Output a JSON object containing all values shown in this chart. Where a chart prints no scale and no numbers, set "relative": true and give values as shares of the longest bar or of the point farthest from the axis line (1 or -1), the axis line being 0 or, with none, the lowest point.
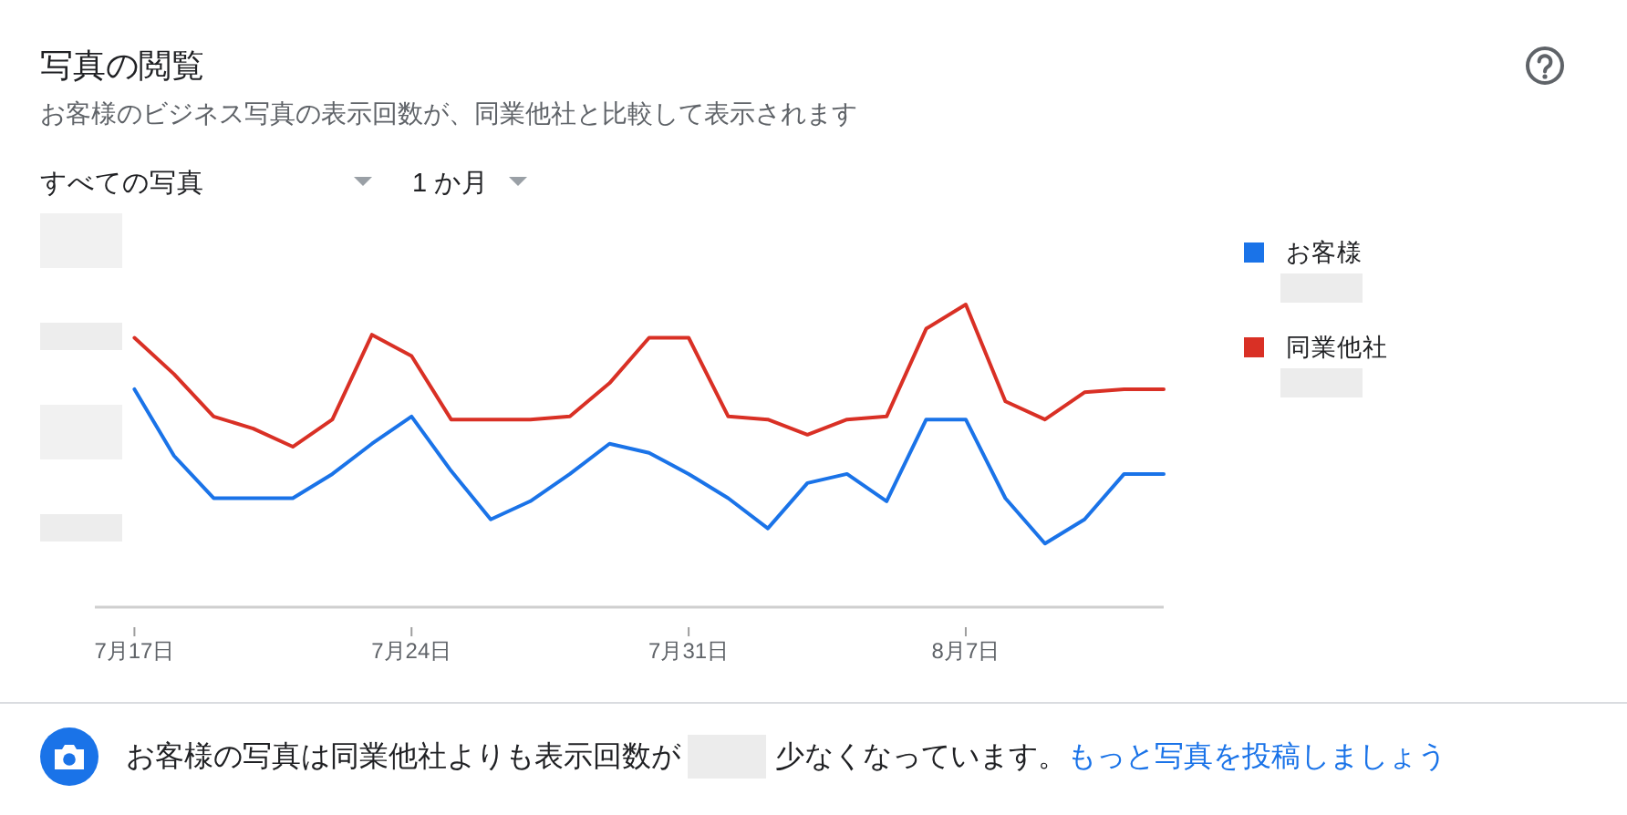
{
  "chart_data": {
    "type": "line",
    "title": "写真の閲覧",
    "subtitle": "お客様のビジネス写真の表示回数が、同業他社と比較して表示されます",
    "annotations": [
      "すべての写真",
      "1 か月",
      "お客様の写真は同業他社よりも表示回数が",
      "少なくなっています。",
      "もっと写真を投稿しましょう"
    ],
    "x": [
      "--07-17",
      "--07-18",
      "--07-19",
      "--07-20",
      "--07-21",
      "--07-22",
      "--07-23",
      "--07-24",
      "--07-25",
      "--07-26",
      "--07-27",
      "--07-28",
      "--07-29",
      "--07-30",
      "--07-31",
      "--08-01",
      "--08-02",
      "--08-03",
      "--08-04",
      "--08-05",
      "--08-06",
      "--08-07",
      "--08-08",
      "--08-09",
      "--08-10",
      "--08-11",
      "--08-12"
    ],
    "xlim": [
      "--07-16",
      "--08-12"
    ],
    "xticks": [
      {
        "value": "--07-17",
        "label": "7月17日"
      },
      {
        "value": "--07-24",
        "label": "7月24日"
      },
      {
        "value": "--07-31",
        "label": "7月31日"
      },
      {
        "value": "--08-07",
        "label": "8月7日"
      }
    ],
    "relative": true,
    "series": [
      {
        "name": "お客様",
        "color": "#1a73e8",
        "values": [
          0.72,
          0.5,
          0.36,
          0.36,
          0.36,
          0.44,
          0.54,
          0.63,
          0.45,
          0.29,
          0.35,
          0.44,
          0.54,
          0.51,
          0.44,
          0.36,
          0.26,
          0.41,
          0.44,
          0.35,
          0.62,
          0.62,
          0.36,
          0.21,
          0.29,
          0.44,
          0.44
        ]
      },
      {
        "name": "同業他社",
        "color": "#d93025",
        "values": [
          0.89,
          0.77,
          0.63,
          0.59,
          0.53,
          0.62,
          0.9,
          0.83,
          0.62,
          0.62,
          0.62,
          0.63,
          0.74,
          0.89,
          0.89,
          0.63,
          0.62,
          0.57,
          0.62,
          0.63,
          0.92,
          1,
          0.68,
          0.62,
          0.71,
          0.72,
          0.72
        ]
      }
    ],
    "legend": "right"
  }
}
